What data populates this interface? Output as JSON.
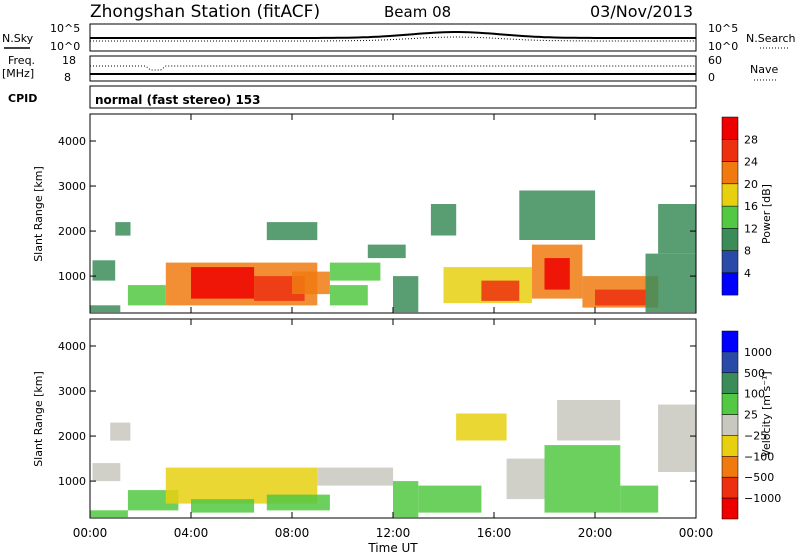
{
  "header": {
    "station": "Zhongshan Station (fitACF)",
    "beam": "Beam 08",
    "date": "03/Nov/2013"
  },
  "strip_labels": {
    "nsky": "N.Sky",
    "nsky_top": "10^5",
    "nsky_bottom": "10^0",
    "freq_title": "Freq.",
    "freq_unit": "[MHz]",
    "freq_top": "18",
    "freq_bottom": "8",
    "cpid": "CPID",
    "cpid_value": "normal (fast stereo) 153",
    "nsearch": "N.Search",
    "nsearch_top": "10^5",
    "nsearch_bottom": "10^0",
    "nave": "Nave",
    "nave_top": "60",
    "nave_bottom": "0"
  },
  "axes": {
    "y_label": "Slant Range [km]",
    "x_label": "Time UT",
    "y_ticks": [
      "1000",
      "2000",
      "3000",
      "4000"
    ],
    "x_ticks": [
      "00:00",
      "04:00",
      "08:00",
      "12:00",
      "16:00",
      "20:00",
      "00:00"
    ]
  },
  "colorbars": {
    "power": {
      "label": "Power [dB]",
      "ticks": [
        "4",
        "8",
        "12",
        "16",
        "20",
        "24",
        "28"
      ],
      "colors": [
        "#0000ff",
        "#2a4aa8",
        "#3c8c5a",
        "#52c843",
        "#e8d010",
        "#f07a10",
        "#ec3010",
        "#ee0000"
      ]
    },
    "velocity": {
      "label": "Velocity [m s⁻¹]",
      "ticks": [
        "1000",
        "500",
        "100",
        "25",
        "−25",
        "−100",
        "−500",
        "−1000"
      ],
      "colors": [
        "#0000ff",
        "#2a4aa8",
        "#3c8c5a",
        "#52c843",
        "#c8c8c0",
        "#e8d010",
        "#f07a10",
        "#ec3010",
        "#ee0000"
      ]
    }
  },
  "chart_data": [
    {
      "type": "heatmap",
      "title": "Power",
      "ylabel": "Slant Range [km]",
      "xlabel": "Time UT",
      "x_range": [
        "00:00",
        "24:00"
      ],
      "ylim": [
        180,
        4600
      ],
      "colorbar": "Power [dB]",
      "clim": [
        0,
        30
      ],
      "regions": [
        {
          "t": [
            0.0,
            1.2
          ],
          "r": [
            200,
            350
          ],
          "value": 10
        },
        {
          "t": [
            0.1,
            1.0
          ],
          "r": [
            900,
            1350
          ],
          "value": 8
        },
        {
          "t": [
            1.0,
            1.6
          ],
          "r": [
            1900,
            2200
          ],
          "value": 8
        },
        {
          "t": [
            1.5,
            3.0
          ],
          "r": [
            350,
            800
          ],
          "value": 14
        },
        {
          "t": [
            3.0,
            9.0
          ],
          "r": [
            350,
            1300
          ],
          "value": 20
        },
        {
          "t": [
            4.0,
            6.5
          ],
          "r": [
            500,
            1200
          ],
          "value": 27
        },
        {
          "t": [
            6.5,
            8.5
          ],
          "r": [
            450,
            1000
          ],
          "value": 25
        },
        {
          "t": [
            7.0,
            9.0
          ],
          "r": [
            1800,
            2200
          ],
          "value": 8
        },
        {
          "t": [
            8.0,
            9.5
          ],
          "r": [
            600,
            1100
          ],
          "value": 22
        },
        {
          "t": [
            9.5,
            11.5
          ],
          "r": [
            900,
            1300
          ],
          "value": 14
        },
        {
          "t": [
            9.5,
            11.0
          ],
          "r": [
            350,
            800
          ],
          "value": 12
        },
        {
          "t": [
            11.0,
            12.5
          ],
          "r": [
            1400,
            1700
          ],
          "value": 8
        },
        {
          "t": [
            12.0,
            13.0
          ],
          "r": [
            200,
            1000
          ],
          "value": 10
        },
        {
          "t": [
            13.5,
            14.5
          ],
          "r": [
            1900,
            2600
          ],
          "value": 8
        },
        {
          "t": [
            14.0,
            17.5
          ],
          "r": [
            400,
            1200
          ],
          "value": 18
        },
        {
          "t": [
            15.5,
            17.0
          ],
          "r": [
            450,
            900
          ],
          "value": 26
        },
        {
          "t": [
            17.5,
            19.5
          ],
          "r": [
            500,
            1700
          ],
          "value": 22
        },
        {
          "t": [
            18.0,
            19.0
          ],
          "r": [
            700,
            1400
          ],
          "value": 28
        },
        {
          "t": [
            17.0,
            20.0
          ],
          "r": [
            1800,
            2900
          ],
          "value": 8
        },
        {
          "t": [
            19.5,
            22.5
          ],
          "r": [
            300,
            1000
          ],
          "value": 20
        },
        {
          "t": [
            20.0,
            22.0
          ],
          "r": [
            350,
            700
          ],
          "value": 26
        },
        {
          "t": [
            22.0,
            24.0
          ],
          "r": [
            200,
            1500
          ],
          "value": 8
        },
        {
          "t": [
            22.5,
            24.0
          ],
          "r": [
            1500,
            2600
          ],
          "value": 8
        }
      ]
    },
    {
      "type": "heatmap",
      "title": "Velocity",
      "ylabel": "Slant Range [km]",
      "xlabel": "Time UT",
      "x_range": [
        "00:00",
        "24:00"
      ],
      "ylim": [
        180,
        4600
      ],
      "colorbar": "Velocity [m s⁻¹]",
      "clim": [
        -1000,
        1000
      ],
      "regions": [
        {
          "t": [
            0.0,
            1.5
          ],
          "r": [
            200,
            350
          ],
          "value": 150
        },
        {
          "t": [
            0.1,
            1.2
          ],
          "r": [
            1000,
            1400
          ],
          "value": 0
        },
        {
          "t": [
            0.8,
            1.6
          ],
          "r": [
            1900,
            2300
          ],
          "value": 0
        },
        {
          "t": [
            1.5,
            3.5
          ],
          "r": [
            350,
            800
          ],
          "value": 150
        },
        {
          "t": [
            3.0,
            9.0
          ],
          "r": [
            500,
            1300
          ],
          "value": -250
        },
        {
          "t": [
            4.0,
            6.5
          ],
          "r": [
            300,
            600
          ],
          "value": 150
        },
        {
          "t": [
            7.0,
            9.5
          ],
          "r": [
            350,
            700
          ],
          "value": 150
        },
        {
          "t": [
            9.0,
            12.0
          ],
          "r": [
            900,
            1300
          ],
          "value": 0
        },
        {
          "t": [
            12.0,
            13.0
          ],
          "r": [
            200,
            1000
          ],
          "value": 150
        },
        {
          "t": [
            13.0,
            15.5
          ],
          "r": [
            300,
            900
          ],
          "value": 150
        },
        {
          "t": [
            14.5,
            16.5
          ],
          "r": [
            1900,
            2500
          ],
          "value": -150
        },
        {
          "t": [
            16.5,
            18.0
          ],
          "r": [
            600,
            1500
          ],
          "value": 0
        },
        {
          "t": [
            18.0,
            21.0
          ],
          "r": [
            300,
            1800
          ],
          "value": 150
        },
        {
          "t": [
            18.5,
            21.0
          ],
          "r": [
            1900,
            2800
          ],
          "value": 0
        },
        {
          "t": [
            21.0,
            22.5
          ],
          "r": [
            300,
            900
          ],
          "value": 150
        },
        {
          "t": [
            22.5,
            24.0
          ],
          "r": [
            1200,
            2700
          ],
          "value": 0
        }
      ]
    }
  ]
}
